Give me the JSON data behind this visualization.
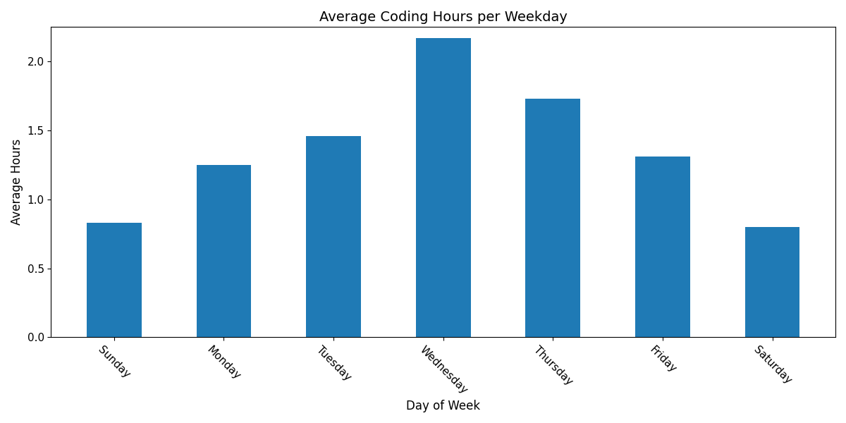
{
  "categories": [
    "Sunday",
    "Monday",
    "Tuesday",
    "Wednesday",
    "Thursday",
    "Friday",
    "Saturday"
  ],
  "values": [
    0.83,
    1.25,
    1.46,
    2.17,
    1.73,
    1.31,
    0.8
  ],
  "bar_color": "#1f7ab5",
  "title": "Average Coding Hours per Weekday",
  "xlabel": "Day of Week",
  "ylabel": "Average Hours",
  "ylim": [
    0.0,
    2.25
  ],
  "yticks": [
    0.0,
    0.5,
    1.0,
    1.5,
    2.0
  ],
  "title_fontsize": 14,
  "label_fontsize": 12,
  "tick_fontsize": 11,
  "bar_width": 0.5,
  "figsize": [
    12.0,
    6.0
  ],
  "dpi": 100
}
